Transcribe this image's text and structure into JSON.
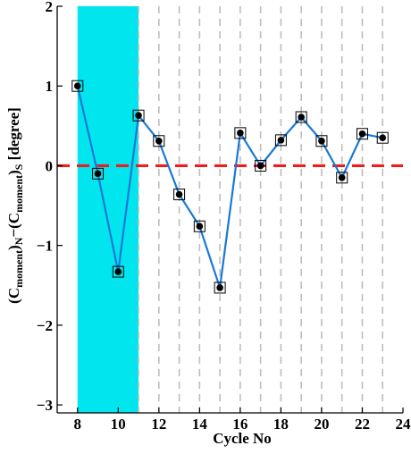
{
  "chart_data": {
    "type": "line",
    "title": "",
    "xlabel": "Cycle No",
    "ylabel": {
      "parts": [
        "(C",
        "moment",
        ")",
        "N",
        "−(C",
        "moment",
        ")",
        "S",
        "  [degree]"
      ]
    },
    "xlim": [
      7,
      24
    ],
    "ylim": [
      -3.1,
      2
    ],
    "x_ticks": [
      8,
      10,
      12,
      14,
      16,
      18,
      20,
      22,
      24
    ],
    "x_tick_labels": [
      "8",
      "10",
      "12",
      "14",
      "16",
      "18",
      "20",
      "22",
      "24"
    ],
    "y_ticks": [
      2,
      1,
      0,
      -1,
      -2,
      -3
    ],
    "y_tick_labels": [
      "2",
      "1",
      "0",
      "−1",
      "−2",
      "−3"
    ],
    "grid": "vertical dashed at odd cycles 11–23",
    "vertical_gridlines": [
      11,
      12,
      13,
      14,
      15,
      16,
      17,
      18,
      19,
      20,
      21,
      22,
      23
    ],
    "shaded_region": {
      "x_start": 8,
      "x_end": 11,
      "color": "#00e5ee"
    },
    "reference_line": {
      "y": 0,
      "color": "#ee1c1c",
      "style": "dashed"
    },
    "series": [
      {
        "x": [
          8,
          9,
          10,
          11,
          12,
          13,
          14,
          15,
          16,
          17,
          18,
          19,
          20,
          21,
          22,
          23
        ],
        "values": [
          1.0,
          -0.1,
          -1.33,
          0.63,
          0.31,
          -0.36,
          -0.76,
          -1.53,
          0.41,
          0.0,
          0.32,
          0.61,
          0.31,
          -0.15,
          0.4,
          0.35
        ],
        "color": "#1a78d6",
        "marker": "filled-circle-in-square"
      }
    ]
  }
}
